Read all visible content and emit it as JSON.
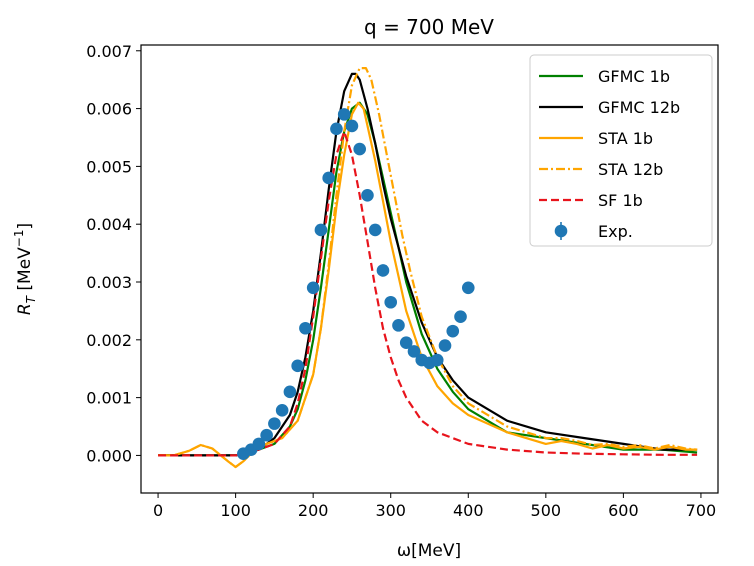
{
  "chart_data": {
    "type": "line",
    "title": "q = 700 MeV",
    "xlabel": "ω[MeV]",
    "ylabel": "R_T [MeV⁻¹]",
    "ylabel_parts": {
      "main": "R",
      "sub": "T",
      "unit": " [MeV",
      "sup": "−1",
      "close": "]"
    },
    "xlim": [
      -22,
      722
    ],
    "ylim": [
      -0.00065,
      0.0071
    ],
    "xticks": [
      0,
      100,
      200,
      300,
      400,
      500,
      600,
      700
    ],
    "yticks": [
      0.0,
      0.001,
      0.002,
      0.003,
      0.004,
      0.005,
      0.006,
      0.007
    ],
    "ytick_labels": [
      "0.000",
      "0.001",
      "0.002",
      "0.003",
      "0.004",
      "0.005",
      "0.006",
      "0.007"
    ],
    "grid": false,
    "legend_position": "top-right",
    "series": [
      {
        "name": "GFMC 1b",
        "color": "#008000",
        "style": "solid",
        "width": 2.2,
        "x": [
          0,
          100,
          130,
          150,
          170,
          180,
          190,
          200,
          210,
          220,
          230,
          240,
          250,
          260,
          270,
          280,
          290,
          300,
          310,
          320,
          340,
          360,
          380,
          400,
          450,
          500,
          550,
          600,
          650,
          695
        ],
        "y": [
          0,
          0,
          0.0001,
          0.0002,
          0.0005,
          0.0008,
          0.0013,
          0.002,
          0.0029,
          0.0039,
          0.0049,
          0.0056,
          0.006,
          0.0061,
          0.0059,
          0.0054,
          0.0048,
          0.0042,
          0.0036,
          0.003,
          0.0021,
          0.0015,
          0.0011,
          0.0008,
          0.0004,
          0.0003,
          0.0002,
          0.0001,
          0.0001,
          5e-05
        ]
      },
      {
        "name": "GFMC 12b",
        "color": "#000000",
        "style": "solid",
        "width": 2.2,
        "x": [
          0,
          100,
          130,
          150,
          170,
          180,
          190,
          200,
          210,
          220,
          230,
          240,
          250,
          255,
          260,
          270,
          280,
          290,
          300,
          310,
          320,
          340,
          360,
          380,
          400,
          450,
          500,
          550,
          600,
          650,
          695
        ],
        "y": [
          0,
          0,
          0.0001,
          0.0003,
          0.0007,
          0.0011,
          0.0017,
          0.0025,
          0.0035,
          0.0046,
          0.0056,
          0.0063,
          0.0066,
          0.0066,
          0.0065,
          0.006,
          0.0054,
          0.0047,
          0.0041,
          0.0036,
          0.0031,
          0.0023,
          0.0017,
          0.0013,
          0.001,
          0.0006,
          0.0004,
          0.0003,
          0.0002,
          0.0001,
          0.0001
        ]
      },
      {
        "name": "STA 1b",
        "color": "#FFA500",
        "style": "solid",
        "width": 2.2,
        "x": [
          0,
          20,
          40,
          55,
          70,
          90,
          100,
          110,
          125,
          140,
          160,
          180,
          200,
          210,
          220,
          230,
          240,
          250,
          258,
          265,
          270,
          280,
          290,
          300,
          310,
          320,
          340,
          360,
          380,
          400,
          450,
          500,
          520,
          540,
          560,
          580,
          600,
          620,
          640,
          660,
          680,
          695
        ],
        "y": [
          0,
          0,
          8e-05,
          0.00018,
          0.00012,
          -0.0001,
          -0.0002,
          -0.0001,
          0.0001,
          0.0002,
          0.0003,
          0.0006,
          0.0014,
          0.0022,
          0.0032,
          0.0043,
          0.0052,
          0.0059,
          0.0061,
          0.006,
          0.0057,
          0.0051,
          0.0044,
          0.0037,
          0.0031,
          0.0025,
          0.0017,
          0.0012,
          0.0009,
          0.0007,
          0.0004,
          0.0002,
          0.00025,
          0.0002,
          0.00012,
          0.00018,
          0.00012,
          0.00015,
          0.0001,
          0.00015,
          0.0001,
          0.0001
        ]
      },
      {
        "name": "STA 12b",
        "color": "#FFA500",
        "style": "dashdot",
        "width": 2.2,
        "x": [
          0,
          20,
          40,
          55,
          70,
          90,
          100,
          110,
          125,
          140,
          160,
          180,
          200,
          210,
          220,
          230,
          240,
          250,
          260,
          268,
          275,
          285,
          295,
          305,
          315,
          325,
          340,
          360,
          380,
          400,
          450,
          500,
          520,
          540,
          560,
          580,
          600,
          620,
          640,
          660,
          680,
          695
        ],
        "y": [
          0,
          0,
          8e-05,
          0.00018,
          0.00012,
          -0.0001,
          -0.0002,
          -0.0001,
          0.0001,
          0.0002,
          0.0003,
          0.0006,
          0.0014,
          0.0022,
          0.0033,
          0.0045,
          0.0056,
          0.0064,
          0.0067,
          0.0067,
          0.0065,
          0.0059,
          0.0052,
          0.0045,
          0.0038,
          0.0032,
          0.0024,
          0.0017,
          0.0012,
          0.0009,
          0.0005,
          0.0003,
          0.0003,
          0.00025,
          0.00018,
          0.0002,
          0.00015,
          0.00018,
          0.00012,
          0.00018,
          0.00012,
          0.0001
        ]
      },
      {
        "name": "SF 1b",
        "color": "#E8141C",
        "style": "dashed",
        "width": 2.2,
        "x": [
          0,
          100,
          130,
          150,
          170,
          180,
          190,
          200,
          210,
          220,
          230,
          240,
          250,
          260,
          270,
          280,
          290,
          300,
          310,
          320,
          340,
          360,
          380,
          400,
          450,
          500,
          550,
          600,
          650,
          695
        ],
        "y": [
          0,
          0,
          0.0001,
          0.0002,
          0.0005,
          0.0009,
          0.0015,
          0.0024,
          0.0034,
          0.0044,
          0.0052,
          0.0056,
          0.0052,
          0.0045,
          0.0037,
          0.0029,
          0.0022,
          0.0017,
          0.0013,
          0.001,
          0.0006,
          0.0004,
          0.0003,
          0.0002,
          0.0001,
          5e-05,
          3e-05,
          2e-05,
          1e-05,
          1e-05
        ]
      },
      {
        "name": "Exp.",
        "color": "#1F77B4",
        "style": "points",
        "x": [
          110,
          120,
          130,
          140,
          150,
          160,
          170,
          180,
          190,
          200,
          210,
          220,
          230,
          240,
          250,
          260,
          270,
          280,
          290,
          300,
          310,
          320,
          330,
          340,
          350,
          360,
          370,
          380,
          390,
          400
        ],
        "y": [
          3e-05,
          0.0001,
          0.0002,
          0.00035,
          0.00055,
          0.00078,
          0.0011,
          0.00155,
          0.0022,
          0.0029,
          0.0039,
          0.0048,
          0.00565,
          0.0059,
          0.0057,
          0.0053,
          0.0045,
          0.0039,
          0.0032,
          0.00265,
          0.00225,
          0.00195,
          0.0018,
          0.00165,
          0.0016,
          0.00165,
          0.0019,
          0.00215,
          0.0024,
          0.0029
        ]
      }
    ]
  }
}
